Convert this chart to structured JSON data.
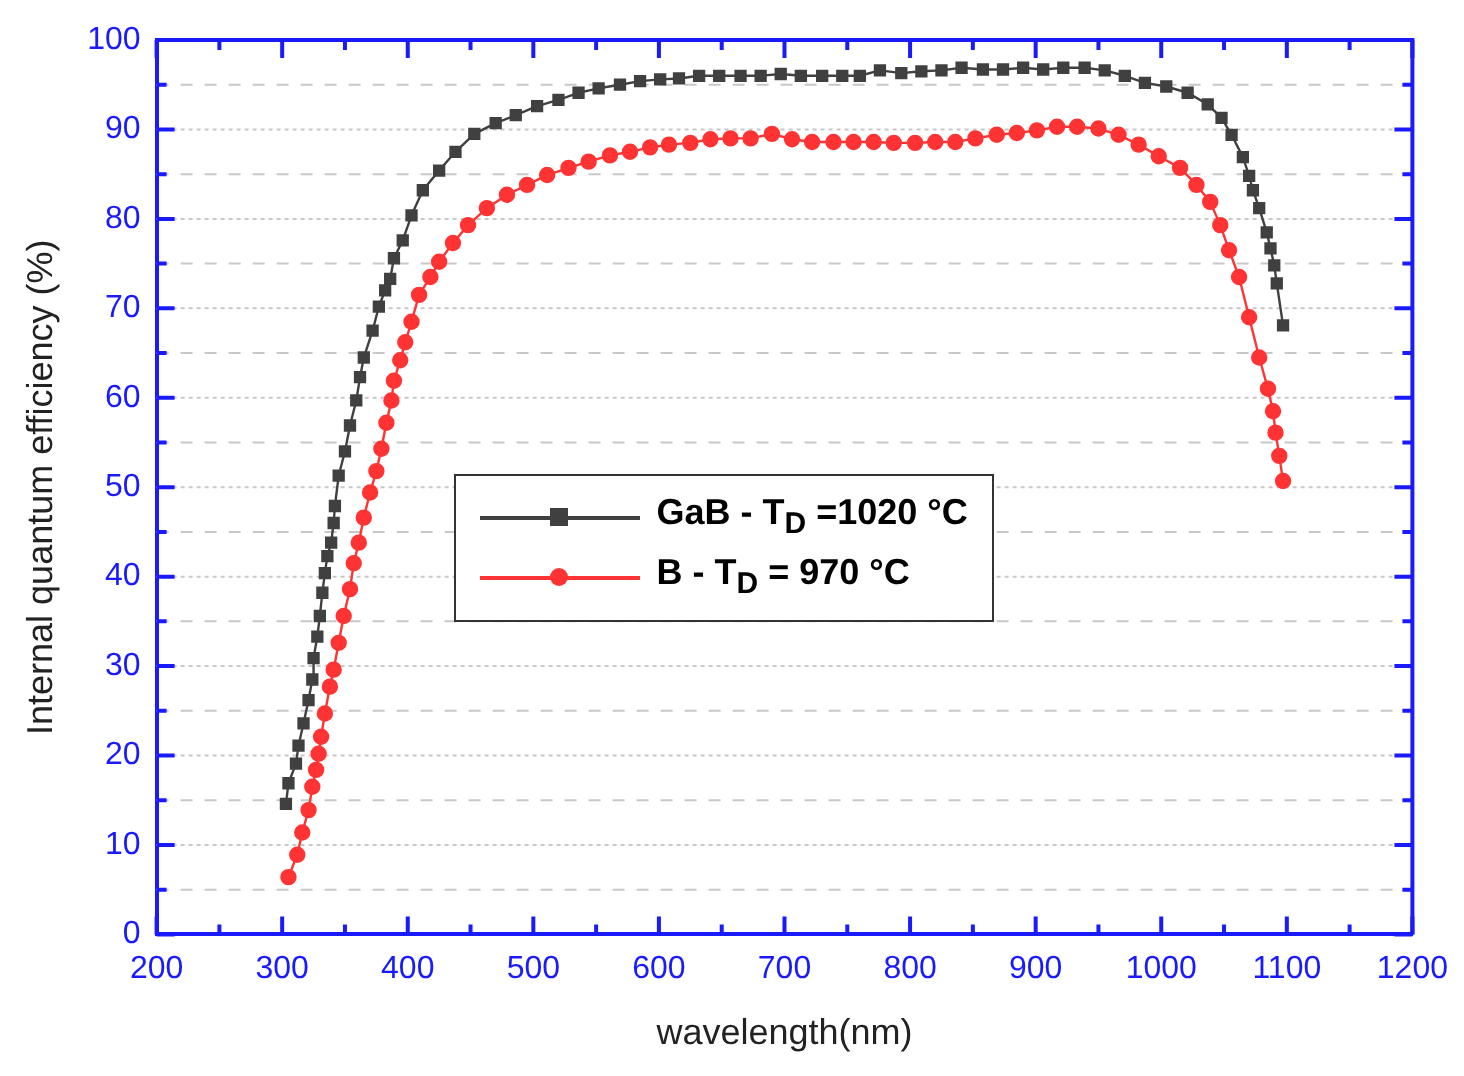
{
  "chart_data": {
    "type": "line",
    "xlabel": "wavelength(nm)",
    "ylabel": "Internal quantum efficiency (%)",
    "xlim": [
      200,
      1200
    ],
    "xticks": [
      200,
      {
        "value": 250,
        "label": null
      },
      300,
      {
        "value": 350,
        "label": null
      },
      400,
      {
        "value": 450,
        "label": null
      },
      500,
      {
        "value": 550,
        "label": null
      },
      600,
      {
        "value": 650,
        "label": null
      },
      700,
      {
        "value": 750,
        "label": null
      },
      800,
      {
        "value": 850,
        "label": null
      },
      900,
      {
        "value": 950,
        "label": null
      },
      1000,
      {
        "value": 1050,
        "label": null
      },
      1100,
      {
        "value": 1150,
        "label": null
      },
      1200
    ],
    "ylim": [
      0,
      100
    ],
    "yticks": [
      0,
      {
        "value": 5,
        "label": null
      },
      10,
      {
        "value": 15,
        "label": null
      },
      20,
      {
        "value": 25,
        "label": null
      },
      30,
      {
        "value": 35,
        "label": null
      },
      40,
      {
        "value": 45,
        "label": null
      },
      50,
      {
        "value": 55,
        "label": null
      },
      60,
      {
        "value": 65,
        "label": null
      },
      70,
      {
        "value": 75,
        "label": null
      },
      80,
      {
        "value": 85,
        "label": null
      },
      90,
      {
        "value": 95,
        "label": null
      },
      100
    ],
    "grid": "y",
    "legend": "center",
    "series": [
      {
        "name": "GaB - T$_{D}$ =1020 °C",
        "color": "#404040",
        "marker": "square",
        "x": [
          303,
          305,
          311,
          313,
          317,
          321,
          324,
          325,
          328,
          330,
          332,
          334,
          336,
          339,
          341,
          342,
          345,
          350,
          354,
          359,
          362,
          365,
          372,
          377,
          382,
          386,
          389,
          396,
          403,
          412,
          425,
          438,
          453,
          470,
          486,
          503,
          520,
          536,
          552,
          569,
          585,
          601,
          616,
          632,
          648,
          665,
          681,
          697,
          713,
          730,
          746,
          760,
          776,
          793,
          809,
          825,
          841,
          858,
          874,
          890,
          906,
          922,
          939,
          955,
          971,
          987,
          1004,
          1021,
          1037,
          1048,
          1056,
          1065,
          1070,
          1073,
          1078,
          1084,
          1087,
          1090,
          1092,
          1097
        ],
        "values": [
          14.6,
          16.9,
          19.1,
          21.1,
          23.6,
          26.2,
          28.5,
          30.9,
          33.3,
          35.6,
          38.2,
          40.4,
          42.3,
          43.8,
          46.0,
          47.9,
          51.3,
          54.0,
          56.9,
          59.7,
          62.3,
          64.5,
          67.5,
          70.2,
          72.0,
          73.3,
          75.6,
          77.6,
          80.4,
          83.2,
          85.4,
          87.5,
          89.5,
          90.7,
          91.6,
          92.6,
          93.3,
          94.1,
          94.6,
          95.0,
          95.4,
          95.6,
          95.7,
          96.0,
          96.0,
          96.0,
          96.0,
          96.2,
          96.0,
          96.0,
          96.0,
          96.0,
          96.6,
          96.3,
          96.5,
          96.6,
          96.9,
          96.7,
          96.7,
          96.9,
          96.7,
          96.9,
          96.9,
          96.6,
          96.0,
          95.2,
          94.8,
          94.1,
          92.8,
          91.3,
          89.4,
          86.9,
          84.8,
          83.2,
          81.2,
          78.5,
          76.7,
          74.8,
          72.8,
          68.1
        ]
      },
      {
        "name": "B - T$_{D}$ = 970 °C",
        "color": "#ff3333",
        "marker": "circle",
        "x": [
          305,
          312,
          316,
          321,
          324,
          327,
          329,
          331,
          334,
          338,
          341,
          345,
          349,
          354,
          357,
          361,
          365,
          370,
          375,
          379,
          383,
          387,
          389,
          394,
          398,
          403,
          409,
          418,
          425,
          436,
          448,
          463,
          479,
          495,
          511,
          528,
          544,
          561,
          577,
          593,
          608,
          625,
          641,
          657,
          673,
          690,
          706,
          722,
          739,
          755,
          771,
          787,
          804,
          820,
          836,
          852,
          869,
          885,
          901,
          917,
          933,
          950,
          966,
          982,
          998,
          1015,
          1028,
          1039,
          1047,
          1054,
          1062,
          1070,
          1078,
          1085,
          1089,
          1091,
          1094,
          1097
        ],
        "values": [
          6.4,
          8.9,
          11.4,
          13.9,
          16.5,
          18.4,
          20.2,
          22.1,
          24.7,
          27.7,
          29.6,
          32.6,
          35.6,
          38.6,
          41.5,
          43.8,
          46.6,
          49.4,
          51.8,
          54.3,
          57.2,
          59.7,
          61.9,
          64.2,
          66.2,
          68.5,
          71.5,
          73.5,
          75.2,
          77.3,
          79.3,
          81.2,
          82.7,
          83.8,
          84.9,
          85.7,
          86.4,
          87.1,
          87.5,
          88.0,
          88.3,
          88.5,
          88.9,
          89.0,
          89.0,
          89.5,
          88.9,
          88.6,
          88.6,
          88.6,
          88.6,
          88.5,
          88.5,
          88.6,
          88.6,
          89.0,
          89.4,
          89.6,
          89.9,
          90.3,
          90.3,
          90.1,
          89.4,
          88.3,
          87.0,
          85.7,
          83.8,
          81.9,
          79.3,
          76.5,
          73.5,
          69.0,
          64.5,
          61.0,
          58.5,
          56.1,
          53.5,
          50.7
        ]
      }
    ]
  }
}
